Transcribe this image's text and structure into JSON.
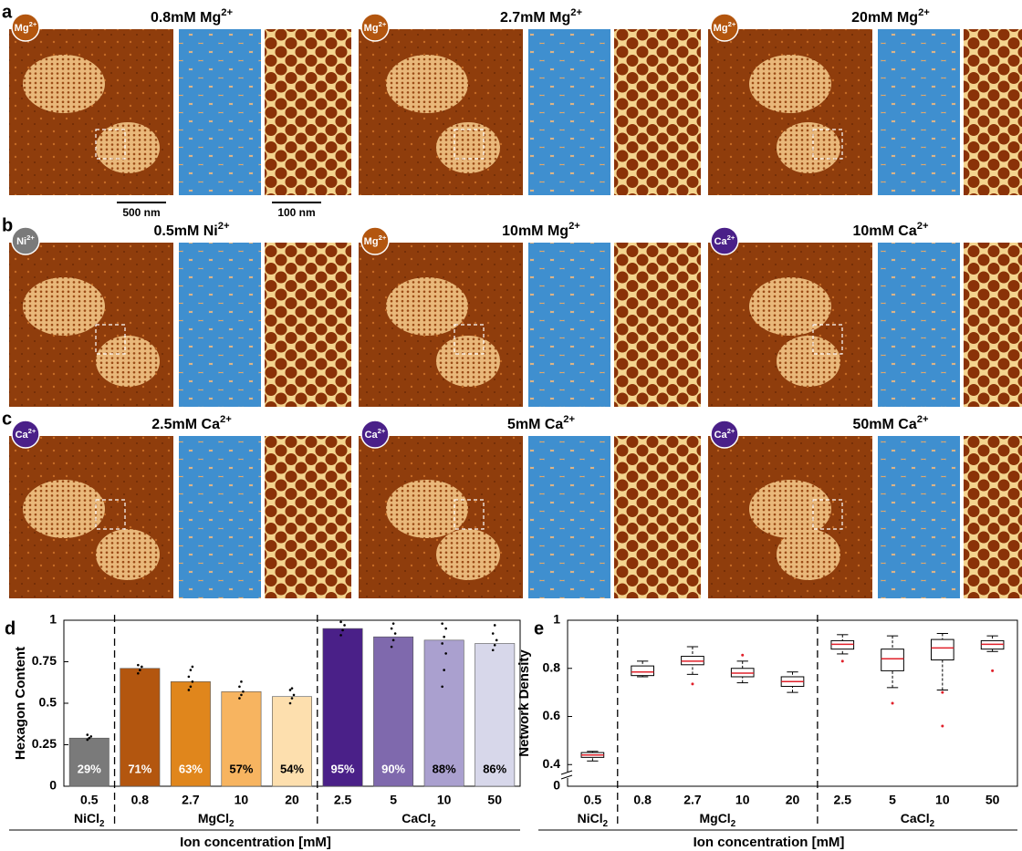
{
  "panels": [
    {
      "letter": "a",
      "images": [
        {
          "badge": {
            "text": "Mg",
            "sup": "2+"
          },
          "badge_color": "#b3560f",
          "title": {
            "text": "0.8mM Mg",
            "sup": "2+"
          }
        },
        {
          "badge": {
            "text": "Mg",
            "sup": "2+"
          },
          "badge_color": "#b3560f",
          "title": {
            "text": "2.7mM Mg",
            "sup": "2+"
          }
        },
        {
          "badge": {
            "text": "Mg",
            "sup": "2+"
          },
          "badge_color": "#b3560f",
          "title": {
            "text": "20mM Mg",
            "sup": "2+"
          }
        }
      ]
    },
    {
      "letter": "b",
      "images": [
        {
          "badge": {
            "text": "Ni",
            "sup": "2+"
          },
          "badge_color": "#7a7a7a",
          "title": {
            "text": "0.5mM Ni",
            "sup": "2+"
          }
        },
        {
          "badge": {
            "text": "Mg",
            "sup": "2+"
          },
          "badge_color": "#b3560f",
          "title": {
            "text": "10mM Mg",
            "sup": "2+"
          }
        },
        {
          "badge": {
            "text": "Ca",
            "sup": "2+"
          },
          "badge_color": "#4a2088",
          "title": {
            "text": "10mM Ca",
            "sup": "2+"
          }
        }
      ]
    },
    {
      "letter": "c",
      "images": [
        {
          "badge": {
            "text": "Ca",
            "sup": "2+"
          },
          "badge_color": "#4a2088",
          "title": {
            "text": "2.5mM Ca",
            "sup": "2+"
          }
        },
        {
          "badge": {
            "text": "Ca",
            "sup": "2+"
          },
          "badge_color": "#4a2088",
          "title": {
            "text": "5mM Ca",
            "sup": "2+"
          }
        },
        {
          "badge": {
            "text": "Ca",
            "sup": "2+"
          },
          "badge_color": "#4a2088",
          "title": {
            "text": "50mM Ca",
            "sup": "2+"
          }
        }
      ]
    }
  ],
  "scale_bars": [
    "500 nm",
    "100 nm"
  ],
  "chart_data": [
    {
      "type": "bar",
      "letter": "d",
      "ylabel": "Hexagon Content",
      "xlabel": "Ion concentration [mM]",
      "ylim": [
        0,
        1
      ],
      "yticks": [
        0,
        0.25,
        0.5,
        0.75,
        1
      ],
      "groups": [
        {
          "name": {
            "text": "NiCl",
            "sub": "2"
          },
          "categories": [
            "0.5"
          ],
          "values": [
            0.29
          ],
          "value_labels": [
            "29%"
          ],
          "colors": [
            "#7a7a7a"
          ],
          "points": [
            [
              0.28,
              0.29,
              0.3,
              0.31
            ]
          ]
        },
        {
          "name": {
            "text": "MgCl",
            "sub": "2"
          },
          "categories": [
            "0.8",
            "2.7",
            "10",
            "20"
          ],
          "values": [
            0.71,
            0.63,
            0.57,
            0.54
          ],
          "value_labels": [
            "71%",
            "63%",
            "57%",
            "54%"
          ],
          "colors": [
            "#b3560f",
            "#e0861c",
            "#f7b460",
            "#fddfae"
          ],
          "points": [
            [
              0.68,
              0.7,
              0.72,
              0.73
            ],
            [
              0.58,
              0.6,
              0.63,
              0.66,
              0.7,
              0.72
            ],
            [
              0.53,
              0.55,
              0.57,
              0.6,
              0.63
            ],
            [
              0.5,
              0.53,
              0.55,
              0.58,
              0.59
            ]
          ]
        },
        {
          "name": {
            "text": "CaCl",
            "sub": "2"
          },
          "categories": [
            "2.5",
            "5",
            "10",
            "50"
          ],
          "values": [
            0.95,
            0.9,
            0.88,
            0.86
          ],
          "value_labels": [
            "95%",
            "90%",
            "88%",
            "86%"
          ],
          "colors": [
            "#4a2088",
            "#7f69ad",
            "#aaa0cf",
            "#d7d7ea"
          ],
          "points": [
            [
              0.91,
              0.94,
              0.97,
              0.99
            ],
            [
              0.84,
              0.88,
              0.92,
              0.95,
              0.98
            ],
            [
              0.6,
              0.7,
              0.8,
              0.86,
              0.9,
              0.95,
              0.98
            ],
            [
              0.82,
              0.85,
              0.88,
              0.92,
              0.97
            ]
          ]
        }
      ]
    },
    {
      "type": "box",
      "letter": "e",
      "ylabel": "Network Density",
      "xlabel": "Ion concentration [mM]",
      "ylim": [
        0.31,
        1
      ],
      "yticks": [
        0,
        0.4,
        0.6,
        0.8,
        1
      ],
      "axis_break": true,
      "groups": [
        {
          "name": {
            "text": "NiCl",
            "sub": "2"
          },
          "categories": [
            "0.5"
          ],
          "boxes": [
            {
              "min": 0.415,
              "q1": 0.43,
              "median": 0.44,
              "q3": 0.45,
              "max": 0.455,
              "outliers": []
            }
          ]
        },
        {
          "name": {
            "text": "MgCl",
            "sub": "2"
          },
          "categories": [
            "0.8",
            "2.7",
            "10",
            "20"
          ],
          "boxes": [
            {
              "min": 0.765,
              "q1": 0.77,
              "median": 0.785,
              "q3": 0.81,
              "max": 0.83,
              "outliers": []
            },
            {
              "min": 0.775,
              "q1": 0.815,
              "median": 0.83,
              "q3": 0.85,
              "max": 0.89,
              "outliers": [
                0.735
              ]
            },
            {
              "min": 0.74,
              "q1": 0.765,
              "median": 0.78,
              "q3": 0.8,
              "max": 0.83,
              "outliers": [
                0.855
              ]
            },
            {
              "min": 0.7,
              "q1": 0.725,
              "median": 0.745,
              "q3": 0.765,
              "max": 0.785,
              "outliers": []
            }
          ]
        },
        {
          "name": {
            "text": "CaCl",
            "sub": "2"
          },
          "categories": [
            "2.5",
            "5",
            "10",
            "50"
          ],
          "boxes": [
            {
              "min": 0.86,
              "q1": 0.88,
              "median": 0.9,
              "q3": 0.915,
              "max": 0.94,
              "outliers": [
                0.83
              ]
            },
            {
              "min": 0.72,
              "q1": 0.79,
              "median": 0.84,
              "q3": 0.88,
              "max": 0.935,
              "outliers": [
                0.655
              ]
            },
            {
              "min": 0.71,
              "q1": 0.835,
              "median": 0.885,
              "q3": 0.92,
              "max": 0.945,
              "outliers": [
                0.7,
                0.56
              ]
            },
            {
              "min": 0.87,
              "q1": 0.88,
              "median": 0.9,
              "q3": 0.915,
              "max": 0.935,
              "outliers": [
                0.79
              ]
            }
          ]
        }
      ]
    }
  ]
}
